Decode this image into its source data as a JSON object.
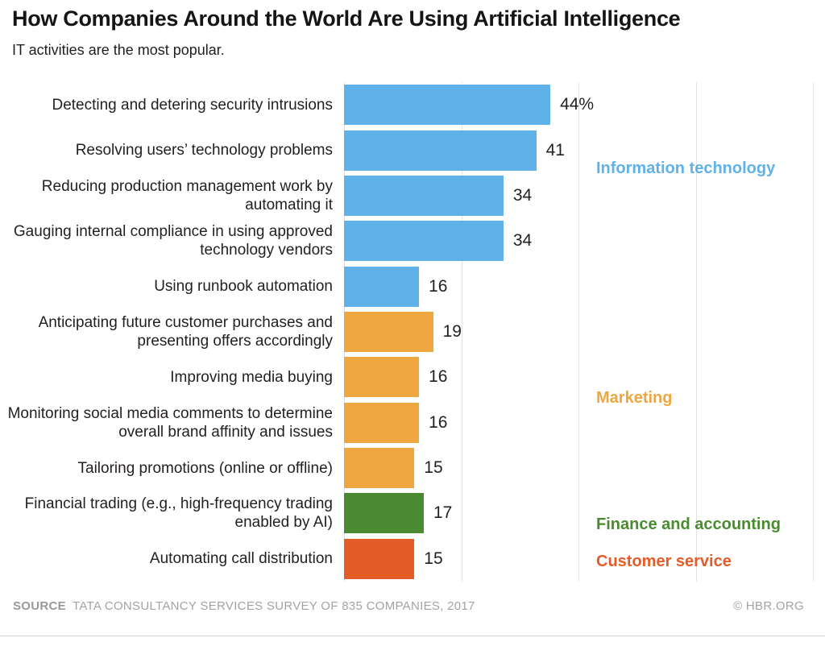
{
  "header": {
    "title": "How Companies Around the World Are Using Artificial Intelligence",
    "subtitle": "IT activities are the most popular."
  },
  "chart_data": {
    "type": "bar",
    "orientation": "horizontal",
    "title": "How Companies Around the World Are Using Artificial Intelligence",
    "subtitle": "IT activities are the most popular.",
    "xlabel": "",
    "ylabel": "",
    "unit": "percent of companies",
    "xlim": [
      0,
      100
    ],
    "gridlines": [
      0,
      25,
      50,
      75,
      100
    ],
    "grid": "vertical-light-gray",
    "legend_position": "right-inline-category-labels",
    "bars": [
      {
        "label": "Detecting and detering security intrusions",
        "value": 44,
        "display": "44%",
        "category": "Information technology"
      },
      {
        "label": "Resolving users’ technology problems",
        "value": 41,
        "display": "41",
        "category": "Information technology"
      },
      {
        "label": "Reducing production management work by automating it",
        "value": 34,
        "display": "34",
        "category": "Information technology"
      },
      {
        "label": "Gauging internal compliance in using approved technology vendors",
        "value": 34,
        "display": "34",
        "category": "Information technology"
      },
      {
        "label": "Using runbook automation",
        "value": 16,
        "display": "16",
        "category": "Information technology"
      },
      {
        "label": "Anticipating future customer purchases and presenting offers accordingly",
        "value": 19,
        "display": "19",
        "category": "Marketing"
      },
      {
        "label": "Improving media buying",
        "value": 16,
        "display": "16",
        "category": "Marketing"
      },
      {
        "label": "Monitoring social media comments to determine overall brand affinity and issues",
        "value": 16,
        "display": "16",
        "category": "Marketing"
      },
      {
        "label": "Tailoring promotions (online or offline)",
        "value": 15,
        "display": "15",
        "category": "Marketing"
      },
      {
        "label": "Financial trading (e.g., high-frequency trading enabled by AI)",
        "value": 17,
        "display": "17",
        "category": "Finance and accounting"
      },
      {
        "label": "Automating call distribution",
        "value": 15,
        "display": "15",
        "category": "Customer service"
      }
    ],
    "categories": [
      {
        "name": "Information technology",
        "color": "#5FB2E9"
      },
      {
        "name": "Marketing",
        "color": "#EEA640"
      },
      {
        "name": "Finance and accounting",
        "color": "#4A8B32"
      },
      {
        "name": "Customer service",
        "color": "#E45D29"
      }
    ]
  },
  "footer": {
    "source_label": "SOURCE",
    "source_text": "TATA CONSULTANCY SERVICES SURVEY OF 835 COMPANIES, 2017",
    "credit": "© HBR.ORG"
  }
}
